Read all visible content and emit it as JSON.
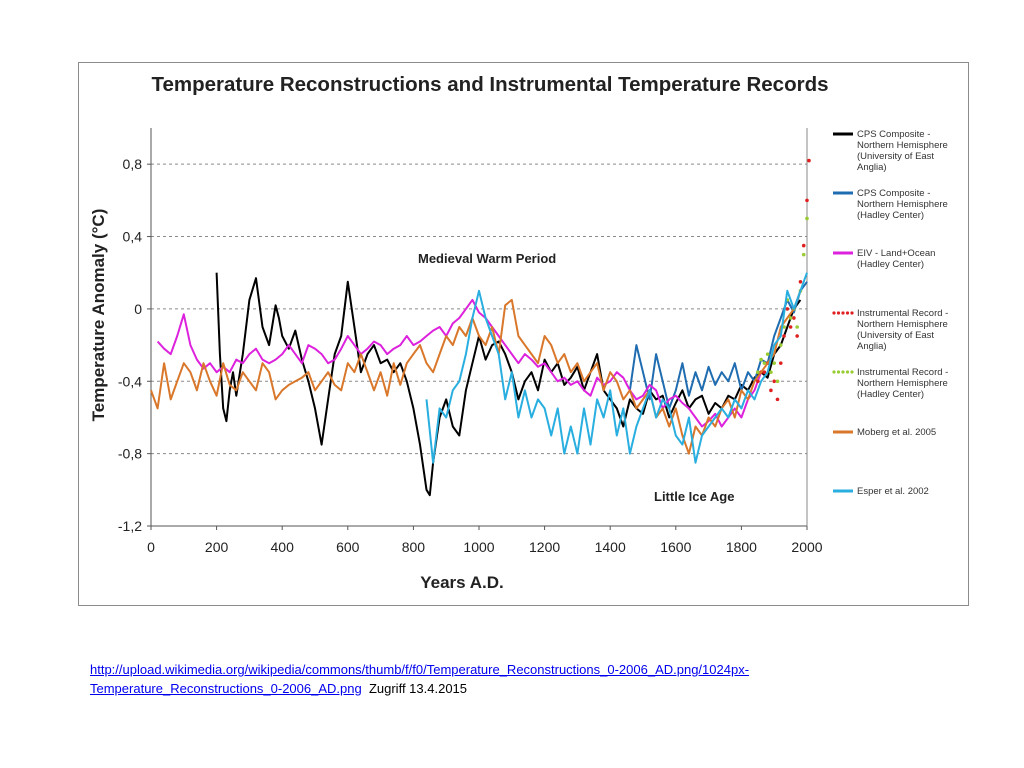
{
  "chart_data": {
    "type": "line",
    "title": "Temperature Reconstructions and Instrumental Temperature Records",
    "xlabel": "Years A.D.",
    "ylabel": "Temperature Anomaly (°C)",
    "xlim": [
      0,
      2000
    ],
    "ylim": [
      -1.2,
      1.0
    ],
    "x_ticks": [
      0,
      200,
      400,
      600,
      800,
      1000,
      1200,
      1400,
      1600,
      1800,
      2000
    ],
    "x_tick_labels": [
      "0",
      "200",
      "400",
      "600",
      "800",
      "1000",
      "1200",
      "1400",
      "1600",
      "1800",
      "2000"
    ],
    "y_ticks": [
      0.8,
      0.4,
      0,
      -0.4,
      -0.8,
      -1.2
    ],
    "y_tick_labels": [
      "0,8",
      "0,4",
      "0",
      "-0,4",
      "-0,8",
      "-1,2"
    ],
    "grid": "horizontal dashed",
    "legend_position": "right",
    "annotations": [
      "Medieval Warm Period",
      "Little Ice Age"
    ],
    "series": [
      {
        "name": "CPS Composite - Northern Hemisphere (University of East Anglia)",
        "color": "#000000",
        "style": "solid",
        "x": [
          200,
          210,
          220,
          230,
          240,
          250,
          260,
          280,
          300,
          320,
          340,
          360,
          380,
          390,
          400,
          420,
          440,
          460,
          480,
          500,
          520,
          540,
          560,
          580,
          600,
          620,
          640,
          660,
          680,
          700,
          720,
          740,
          760,
          780,
          800,
          820,
          840,
          850,
          860,
          880,
          900,
          920,
          940,
          960,
          980,
          1000,
          1020,
          1040,
          1060,
          1080,
          1100,
          1120,
          1140,
          1160,
          1180,
          1200,
          1220,
          1240,
          1260,
          1280,
          1300,
          1320,
          1340,
          1360,
          1380,
          1400,
          1420,
          1440,
          1460,
          1480,
          1500,
          1520,
          1540,
          1560,
          1580,
          1600,
          1620,
          1640,
          1660,
          1680,
          1700,
          1720,
          1740,
          1760,
          1780,
          1800,
          1820,
          1840,
          1860,
          1880,
          1900,
          1920,
          1940,
          1960,
          1980
        ],
        "y": [
          0.2,
          -0.25,
          -0.55,
          -0.62,
          -0.45,
          -0.35,
          -0.48,
          -0.25,
          0.05,
          0.17,
          -0.1,
          -0.2,
          0.02,
          -0.05,
          -0.15,
          -0.22,
          -0.12,
          -0.28,
          -0.4,
          -0.55,
          -0.75,
          -0.5,
          -0.25,
          -0.15,
          0.15,
          -0.1,
          -0.35,
          -0.25,
          -0.2,
          -0.3,
          -0.28,
          -0.35,
          -0.3,
          -0.4,
          -0.55,
          -0.75,
          -1.0,
          -1.03,
          -0.85,
          -0.6,
          -0.5,
          -0.65,
          -0.7,
          -0.45,
          -0.3,
          -0.15,
          -0.28,
          -0.2,
          -0.18,
          -0.25,
          -0.35,
          -0.5,
          -0.4,
          -0.35,
          -0.45,
          -0.28,
          -0.35,
          -0.3,
          -0.42,
          -0.38,
          -0.32,
          -0.45,
          -0.35,
          -0.25,
          -0.45,
          -0.5,
          -0.55,
          -0.65,
          -0.5,
          -0.55,
          -0.58,
          -0.45,
          -0.5,
          -0.48,
          -0.6,
          -0.52,
          -0.45,
          -0.55,
          -0.5,
          -0.48,
          -0.58,
          -0.52,
          -0.55,
          -0.48,
          -0.5,
          -0.42,
          -0.45,
          -0.38,
          -0.35,
          -0.38,
          -0.25,
          -0.2,
          -0.1,
          0.0,
          0.05
        ]
      },
      {
        "name": "CPS Composite - Northern Hemisphere (Hadley Center)",
        "color": "#1f6cb0",
        "style": "solid",
        "x": [
          1460,
          1480,
          1500,
          1520,
          1540,
          1560,
          1580,
          1600,
          1620,
          1640,
          1660,
          1680,
          1700,
          1720,
          1740,
          1760,
          1780,
          1800,
          1820,
          1840,
          1860,
          1880,
          1900,
          1920,
          1940,
          1960,
          1980,
          2000
        ],
        "y": [
          -0.45,
          -0.2,
          -0.35,
          -0.5,
          -0.25,
          -0.4,
          -0.55,
          -0.45,
          -0.3,
          -0.48,
          -0.35,
          -0.45,
          -0.32,
          -0.42,
          -0.35,
          -0.4,
          -0.3,
          -0.45,
          -0.35,
          -0.4,
          -0.28,
          -0.3,
          -0.15,
          -0.05,
          0.05,
          -0.02,
          0.1,
          0.15
        ]
      },
      {
        "name": "EIV - Land+Ocean (Hadley Center)",
        "color": "#dd22dd",
        "style": "solid",
        "x": [
          20,
          40,
          60,
          80,
          100,
          120,
          140,
          160,
          180,
          200,
          220,
          240,
          260,
          280,
          300,
          320,
          340,
          360,
          380,
          400,
          420,
          440,
          460,
          480,
          500,
          520,
          540,
          560,
          580,
          600,
          620,
          640,
          660,
          680,
          700,
          720,
          740,
          760,
          780,
          800,
          820,
          840,
          860,
          880,
          900,
          920,
          940,
          960,
          980,
          1000,
          1020,
          1040,
          1060,
          1080,
          1100,
          1120,
          1140,
          1160,
          1180,
          1200,
          1220,
          1240,
          1260,
          1280,
          1300,
          1320,
          1340,
          1360,
          1380,
          1400,
          1420,
          1440,
          1460,
          1480,
          1500,
          1520,
          1540,
          1560,
          1580,
          1600,
          1620,
          1640,
          1660,
          1680,
          1700,
          1720,
          1740,
          1760,
          1780,
          1800,
          1820,
          1840,
          1860
        ],
        "y": [
          -0.18,
          -0.22,
          -0.25,
          -0.15,
          -0.03,
          -0.2,
          -0.28,
          -0.33,
          -0.3,
          -0.35,
          -0.32,
          -0.35,
          -0.28,
          -0.3,
          -0.25,
          -0.22,
          -0.28,
          -0.3,
          -0.28,
          -0.25,
          -0.2,
          -0.25,
          -0.3,
          -0.2,
          -0.22,
          -0.25,
          -0.3,
          -0.28,
          -0.22,
          -0.15,
          -0.2,
          -0.25,
          -0.22,
          -0.18,
          -0.2,
          -0.25,
          -0.22,
          -0.2,
          -0.15,
          -0.2,
          -0.18,
          -0.15,
          -0.12,
          -0.1,
          -0.15,
          -0.08,
          -0.05,
          0.0,
          0.05,
          -0.02,
          -0.05,
          -0.1,
          -0.15,
          -0.2,
          -0.25,
          -0.3,
          -0.25,
          -0.28,
          -0.32,
          -0.3,
          -0.35,
          -0.4,
          -0.38,
          -0.42,
          -0.4,
          -0.45,
          -0.48,
          -0.38,
          -0.42,
          -0.4,
          -0.35,
          -0.38,
          -0.45,
          -0.5,
          -0.48,
          -0.42,
          -0.45,
          -0.55,
          -0.5,
          -0.48,
          -0.52,
          -0.55,
          -0.6,
          -0.65,
          -0.62,
          -0.58,
          -0.65,
          -0.6,
          -0.55,
          -0.6,
          -0.5,
          -0.45,
          -0.35
        ]
      },
      {
        "name": "Instrumental Record - Northern Hemisphere (University of East Anglia)",
        "color": "#e02020",
        "style": "dotted",
        "x": [
          1850,
          1860,
          1870,
          1880,
          1890,
          1900,
          1910,
          1920,
          1930,
          1940,
          1950,
          1960,
          1970,
          1980,
          1990,
          2000,
          2006
        ],
        "y": [
          -0.4,
          -0.35,
          -0.35,
          -0.3,
          -0.45,
          -0.4,
          -0.5,
          -0.3,
          -0.15,
          0.0,
          -0.1,
          -0.05,
          -0.15,
          0.15,
          0.35,
          0.6,
          0.82
        ]
      },
      {
        "name": "Instrumental Record - Northern Hemisphere (Hadley Center)",
        "color": "#99cc33",
        "style": "dotted",
        "x": [
          1850,
          1860,
          1870,
          1880,
          1890,
          1900,
          1910,
          1920,
          1930,
          1940,
          1950,
          1960,
          1970,
          1980,
          1990,
          2000
        ],
        "y": [
          -0.35,
          -0.28,
          -0.3,
          -0.25,
          -0.35,
          -0.3,
          -0.4,
          -0.2,
          -0.1,
          0.05,
          -0.05,
          0.0,
          -0.1,
          0.1,
          0.3,
          0.5
        ]
      },
      {
        "name": "Moberg et al. 2005",
        "color": "#d9772b",
        "style": "solid",
        "x": [
          0,
          20,
          40,
          60,
          80,
          100,
          120,
          140,
          160,
          180,
          200,
          220,
          240,
          260,
          280,
          300,
          320,
          340,
          360,
          380,
          400,
          420,
          440,
          460,
          480,
          500,
          520,
          540,
          560,
          580,
          600,
          620,
          640,
          660,
          680,
          700,
          720,
          740,
          760,
          780,
          800,
          820,
          840,
          860,
          880,
          900,
          920,
          940,
          960,
          980,
          1000,
          1020,
          1040,
          1060,
          1080,
          1100,
          1120,
          1140,
          1160,
          1180,
          1200,
          1220,
          1240,
          1260,
          1280,
          1300,
          1320,
          1340,
          1360,
          1380,
          1400,
          1420,
          1440,
          1460,
          1480,
          1500,
          1520,
          1540,
          1560,
          1580,
          1600,
          1620,
          1640,
          1660,
          1680,
          1700,
          1720,
          1740,
          1760,
          1780,
          1800,
          1820,
          1840,
          1860,
          1880,
          1900,
          1920,
          1940,
          1960,
          1980
        ],
        "y": [
          -0.45,
          -0.55,
          -0.3,
          -0.5,
          -0.4,
          -0.3,
          -0.35,
          -0.45,
          -0.3,
          -0.4,
          -0.48,
          -0.3,
          -0.42,
          -0.45,
          -0.35,
          -0.4,
          -0.45,
          -0.3,
          -0.35,
          -0.5,
          -0.45,
          -0.42,
          -0.4,
          -0.38,
          -0.35,
          -0.45,
          -0.4,
          -0.35,
          -0.42,
          -0.45,
          -0.3,
          -0.35,
          -0.25,
          -0.35,
          -0.45,
          -0.35,
          -0.48,
          -0.3,
          -0.42,
          -0.3,
          -0.25,
          -0.2,
          -0.3,
          -0.35,
          -0.25,
          -0.15,
          -0.2,
          -0.1,
          -0.15,
          -0.05,
          -0.15,
          -0.2,
          -0.1,
          -0.25,
          0.02,
          0.05,
          -0.15,
          -0.2,
          -0.25,
          -0.3,
          -0.15,
          -0.2,
          -0.3,
          -0.25,
          -0.35,
          -0.3,
          -0.4,
          -0.35,
          -0.3,
          -0.45,
          -0.35,
          -0.4,
          -0.5,
          -0.45,
          -0.55,
          -0.5,
          -0.45,
          -0.6,
          -0.55,
          -0.65,
          -0.55,
          -0.7,
          -0.8,
          -0.65,
          -0.7,
          -0.6,
          -0.65,
          -0.55,
          -0.5,
          -0.6,
          -0.45,
          -0.5,
          -0.4,
          -0.35,
          -0.3,
          -0.25,
          -0.1,
          -0.05,
          0.0,
          0.1
        ]
      },
      {
        "name": "Esper et al. 2002",
        "color": "#29aee0",
        "style": "solid",
        "x": [
          840,
          860,
          880,
          900,
          920,
          940,
          960,
          980,
          1000,
          1020,
          1040,
          1060,
          1080,
          1100,
          1120,
          1140,
          1160,
          1180,
          1200,
          1220,
          1240,
          1260,
          1280,
          1300,
          1320,
          1340,
          1360,
          1380,
          1400,
          1420,
          1440,
          1460,
          1480,
          1500,
          1520,
          1540,
          1560,
          1580,
          1600,
          1620,
          1640,
          1660,
          1680,
          1700,
          1720,
          1740,
          1760,
          1780,
          1800,
          1820,
          1840,
          1860,
          1880,
          1900,
          1920,
          1940,
          1960,
          1980,
          2000
        ],
        "y": [
          -0.5,
          -0.85,
          -0.55,
          -0.6,
          -0.45,
          -0.4,
          -0.25,
          -0.05,
          0.1,
          -0.05,
          -0.15,
          -0.25,
          -0.5,
          -0.35,
          -0.6,
          -0.45,
          -0.6,
          -0.5,
          -0.55,
          -0.7,
          -0.55,
          -0.8,
          -0.65,
          -0.8,
          -0.55,
          -0.75,
          -0.5,
          -0.6,
          -0.45,
          -0.7,
          -0.55,
          -0.8,
          -0.65,
          -0.55,
          -0.45,
          -0.6,
          -0.5,
          -0.55,
          -0.7,
          -0.75,
          -0.6,
          -0.85,
          -0.7,
          -0.65,
          -0.6,
          -0.55,
          -0.6,
          -0.5,
          -0.55,
          -0.45,
          -0.5,
          -0.4,
          -0.35,
          -0.2,
          -0.15,
          0.1,
          0.0,
          0.1,
          0.2
        ]
      }
    ]
  },
  "legend": [
    {
      "line1": "CPS Composite -",
      "line2": "Northern Hemisphere",
      "line3": "(University of East",
      "line4": "Anglia)"
    },
    {
      "line1": "CPS Composite -",
      "line2": "Northern Hemisphere",
      "line3": "(Hadley Center)"
    },
    {
      "line1": "EIV - Land+Ocean",
      "line2": "(Hadley Center)"
    },
    {
      "line1": "Instrumental Record -",
      "line2": "Northern Hemisphere",
      "line3": "(University of East",
      "line4": "Anglia)"
    },
    {
      "line1": "Instrumental Record -",
      "line2": "Northern Hemisphere",
      "line3": "(Hadley Center)"
    },
    {
      "line1": "Moberg et al. 2005"
    },
    {
      "line1": "Esper et al. 2002"
    }
  ],
  "source": {
    "url_line1": "http://upload.wikimedia.org/wikipedia/commons/thumb/f/f0/Temperature_Reconstructions_0-2006_AD.png/1024px-",
    "url_line2": "Temperature_Reconstructions_0-2006_AD.png",
    "access_note": "Zugriff 13.4.2015"
  }
}
